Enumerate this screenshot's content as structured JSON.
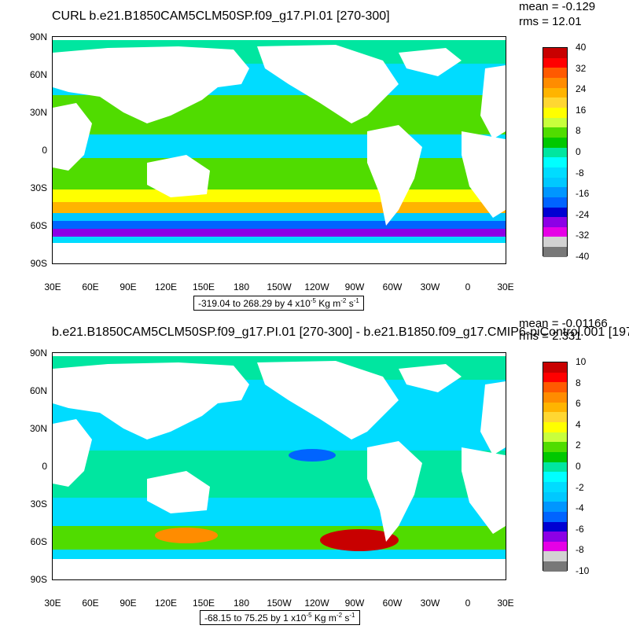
{
  "panels": [
    {
      "id": "top",
      "title": "CURL b.e21.B1850CAM5CLM50SP.f09_g17.PI.01 [270-300]",
      "mean_text": "mean = -0.129",
      "rms_text": "rms = 12.01",
      "range_text": "-319.04 to 268.29 by 4 x10",
      "range_units_exp": "-5",
      "range_units_rest": " Kg m",
      "range_units_exp2": "-2",
      "range_units_s": " s",
      "range_units_exp3": "-1",
      "colorbar_labels": [
        "40",
        "32",
        "24",
        "16",
        "8",
        "0",
        "-8",
        "-16",
        "-24",
        "-32",
        "-40"
      ]
    },
    {
      "id": "bottom",
      "title": "b.e21.B1850CAM5CLM50SP.f09_g17.PI.01 [270-300] - b.e21.B1850.f09_g17.CMIP6-piControl.001 [197",
      "mean_text": "mean = -0.01166",
      "rms_text": "rms = 2.331",
      "range_text": "-68.15 to 75.25 by 1 x10",
      "range_units_exp": "-5",
      "range_units_rest": " Kg m",
      "range_units_exp2": "-2",
      "range_units_s": " s",
      "range_units_exp3": "-1",
      "colorbar_labels": [
        "10",
        "8",
        "6",
        "4",
        "2",
        "0",
        "-2",
        "-4",
        "-6",
        "-8",
        "-10"
      ]
    }
  ],
  "axes": {
    "lat_labels": [
      "90N",
      "60N",
      "30N",
      "0",
      "30S",
      "60S",
      "90S"
    ],
    "lon_labels": [
      "30E",
      "60E",
      "90E",
      "120E",
      "150E",
      "180",
      "150W",
      "120W",
      "90W",
      "60W",
      "30W",
      "0",
      "30E"
    ]
  },
  "colors": {
    "colorbar": [
      "#c80000",
      "#ff0000",
      "#ff5a00",
      "#ff8c00",
      "#ffb400",
      "#ffd732",
      "#ffff00",
      "#c8ff3c",
      "#50dc00",
      "#00c800",
      "#00e6a0",
      "#00ffff",
      "#00dcff",
      "#00c8ff",
      "#0096ff",
      "#0064ff",
      "#0000d2",
      "#8c00e6",
      "#e600e6",
      "#d2d2d2",
      "#787878"
    ],
    "land": "#ffffff",
    "ocean_base": "#00dcff"
  }
}
